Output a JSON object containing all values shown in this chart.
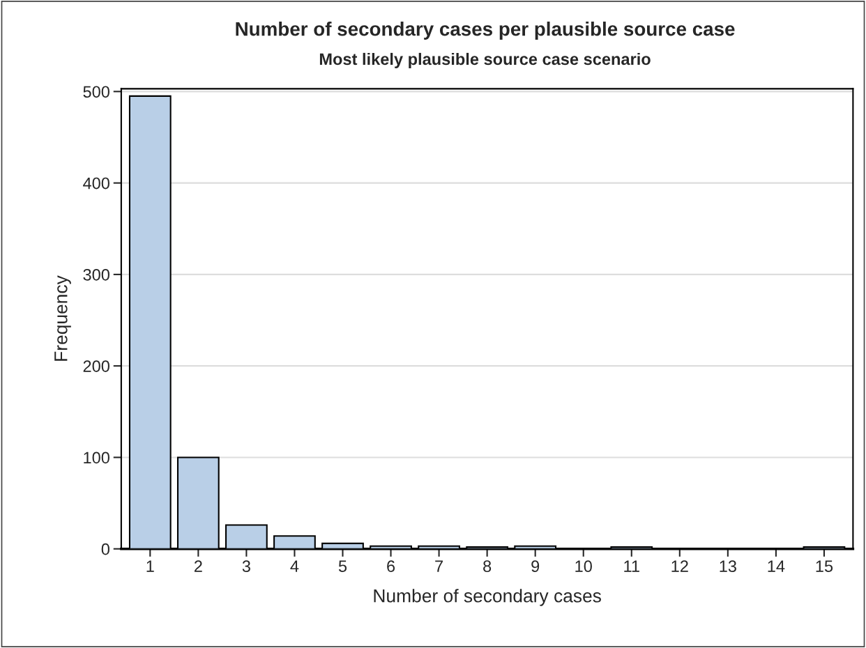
{
  "chart_data": {
    "type": "bar",
    "title": "Number of secondary cases per plausible source case",
    "subtitle": "Most likely plausible source case scenario",
    "xlabel": "Number of secondary cases",
    "ylabel": "Frequency",
    "categories": [
      "1",
      "2",
      "3",
      "4",
      "5",
      "6",
      "7",
      "8",
      "9",
      "10",
      "11",
      "12",
      "13",
      "14",
      "15"
    ],
    "values": [
      495,
      100,
      26,
      14,
      6,
      3,
      3,
      2,
      3,
      0,
      2,
      0,
      0,
      0,
      2
    ],
    "color": "#b9cfe7",
    "ylim": [
      0,
      503
    ],
    "yticks": [
      0,
      100,
      200,
      300,
      400,
      500
    ],
    "grid": "y"
  }
}
